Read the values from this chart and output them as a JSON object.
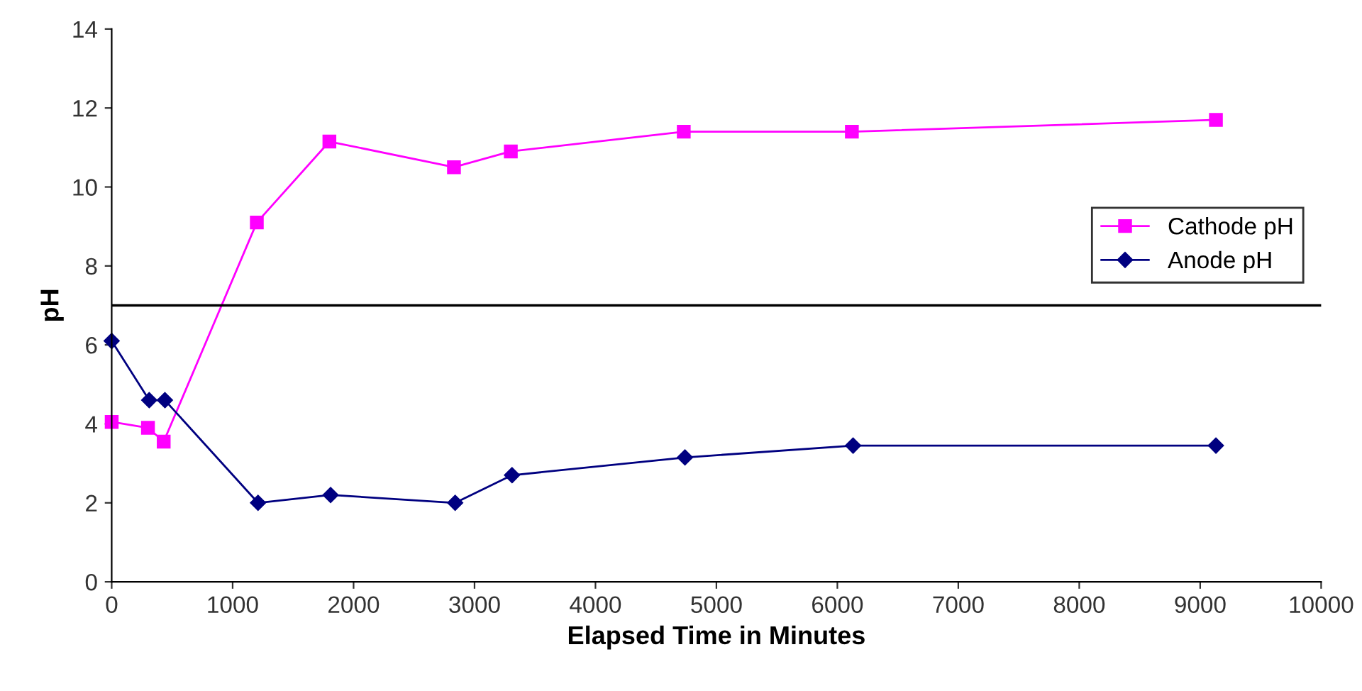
{
  "chart_data": {
    "type": "line",
    "xlabel": "Elapsed Time in Minutes",
    "ylabel": "pH",
    "xlim": [
      0,
      10000
    ],
    "xticks": [
      0,
      1000,
      2000,
      3000,
      4000,
      5000,
      6000,
      7000,
      8000,
      9000,
      10000
    ],
    "ylim": [
      0,
      14
    ],
    "yticks": [
      0,
      2,
      4,
      6,
      8,
      10,
      12,
      14
    ],
    "grid": false,
    "legend": "right",
    "series": [
      {
        "name": "Cathode pH",
        "color": "#ff00ff",
        "marker": "square",
        "x": [
          0,
          300,
          430,
          1200,
          1800,
          2830,
          3300,
          4730,
          6120,
          9130
        ],
        "values": [
          4.05,
          3.9,
          3.55,
          9.1,
          11.15,
          10.5,
          10.9,
          11.4,
          11.4,
          11.7
        ]
      },
      {
        "name": "Anode pH",
        "color": "#000080",
        "marker": "diamond",
        "x": [
          0,
          310,
          440,
          1210,
          1810,
          2840,
          3310,
          4740,
          6130,
          9130
        ],
        "values": [
          6.1,
          4.6,
          4.6,
          2.0,
          2.2,
          2.0,
          2.7,
          3.15,
          3.45,
          3.45
        ]
      }
    ],
    "ref_lines": [
      {
        "axis": "y",
        "value": 7,
        "color": "#000000"
      }
    ]
  }
}
